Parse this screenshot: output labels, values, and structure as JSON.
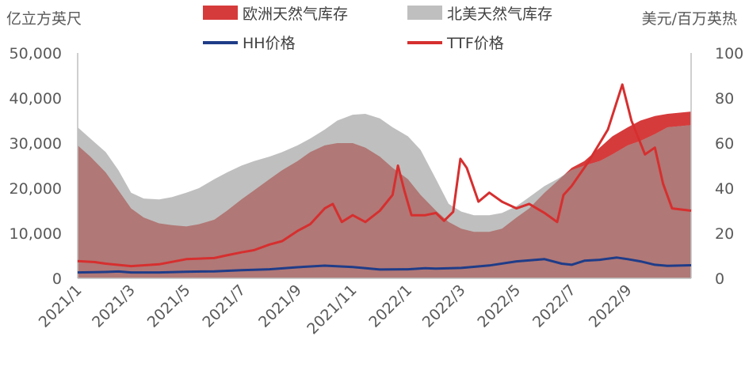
{
  "chart_data": {
    "type": "area",
    "left_unit": "亿立方英尺",
    "right_unit": "美元/百万英热",
    "left_axis": {
      "min": 0,
      "max": 50000,
      "ticks": [
        0,
        10000,
        20000,
        30000,
        40000,
        50000
      ],
      "tick_labels": [
        "0",
        "10,000",
        "20,000",
        "30,000",
        "40,000",
        "50,000"
      ]
    },
    "right_axis": {
      "min": 0,
      "max": 100,
      "ticks": [
        0,
        20,
        40,
        60,
        80,
        100
      ],
      "tick_labels": [
        "0",
        "20",
        "40",
        "60",
        "80",
        "100"
      ]
    },
    "x_range": [
      "2021-01-01",
      "2022-11-10"
    ],
    "x_ticks": [
      "2021-01-01",
      "2021-03-01",
      "2021-05-01",
      "2021-07-01",
      "2021-09-01",
      "2021-11-01",
      "2022-01-01",
      "2022-03-01",
      "2022-05-01",
      "2022-07-01",
      "2022-09-01"
    ],
    "x_tick_labels": [
      "2021/1",
      "2021/3",
      "2021/5",
      "2021/7",
      "2021/9",
      "2021/11",
      "2022/1",
      "2022/3",
      "2022/5",
      "2022/7",
      "2022/9"
    ],
    "colors": {
      "europe_storage": "#d63b3b",
      "na_storage": "#bfbfbf",
      "hh": "#1f3c88",
      "ttf": "#d62f2f",
      "overlap": "#b07876",
      "axis": "#bfbfbf"
    },
    "legend": [
      {
        "key": "europe",
        "label": "欧洲天然气库存"
      },
      {
        "key": "na",
        "label": "北美天然气库存"
      },
      {
        "key": "hh",
        "label": "HH价格"
      },
      {
        "key": "ttf",
        "label": "TTF价格"
      }
    ],
    "series": [
      {
        "name": "欧洲天然气库存",
        "axis": "left",
        "style": "area",
        "points": [
          [
            "2021-01-01",
            29500
          ],
          [
            "2021-01-15",
            27000
          ],
          [
            "2021-02-01",
            23500
          ],
          [
            "2021-02-15",
            19500
          ],
          [
            "2021-03-01",
            15500
          ],
          [
            "2021-03-15",
            13500
          ],
          [
            "2021-04-01",
            12200
          ],
          [
            "2021-04-15",
            11800
          ],
          [
            "2021-05-01",
            11500
          ],
          [
            "2021-05-15",
            12000
          ],
          [
            "2021-06-01",
            13000
          ],
          [
            "2021-06-15",
            15000
          ],
          [
            "2021-07-01",
            17500
          ],
          [
            "2021-07-15",
            19500
          ],
          [
            "2021-08-01",
            22000
          ],
          [
            "2021-08-15",
            24000
          ],
          [
            "2021-09-01",
            26000
          ],
          [
            "2021-09-15",
            28000
          ],
          [
            "2021-10-01",
            29500
          ],
          [
            "2021-10-15",
            30000
          ],
          [
            "2021-11-01",
            30000
          ],
          [
            "2021-11-15",
            29000
          ],
          [
            "2021-12-01",
            27000
          ],
          [
            "2021-12-15",
            24500
          ],
          [
            "2022-01-01",
            22000
          ],
          [
            "2022-01-15",
            18500
          ],
          [
            "2022-02-01",
            15000
          ],
          [
            "2022-02-15",
            12500
          ],
          [
            "2022-03-01",
            11000
          ],
          [
            "2022-03-15",
            10300
          ],
          [
            "2022-04-01",
            10300
          ],
          [
            "2022-04-15",
            11000
          ],
          [
            "2022-05-01",
            13500
          ],
          [
            "2022-05-15",
            15500
          ],
          [
            "2022-06-01",
            19000
          ],
          [
            "2022-06-15",
            21500
          ],
          [
            "2022-07-01",
            24500
          ],
          [
            "2022-07-15",
            26000
          ],
          [
            "2022-08-01",
            29000
          ],
          [
            "2022-08-15",
            31500
          ],
          [
            "2022-09-01",
            33500
          ],
          [
            "2022-09-15",
            35000
          ],
          [
            "2022-10-01",
            36000
          ],
          [
            "2022-10-15",
            36500
          ],
          [
            "2022-11-10",
            37000
          ]
        ]
      },
      {
        "name": "北美天然气库存",
        "axis": "left",
        "style": "area",
        "points": [
          [
            "2021-01-01",
            33500
          ],
          [
            "2021-01-15",
            31000
          ],
          [
            "2021-02-01",
            28000
          ],
          [
            "2021-02-15",
            24000
          ],
          [
            "2021-03-01",
            19000
          ],
          [
            "2021-03-15",
            17700
          ],
          [
            "2021-04-01",
            17500
          ],
          [
            "2021-04-15",
            18000
          ],
          [
            "2021-05-01",
            19000
          ],
          [
            "2021-05-15",
            20000
          ],
          [
            "2021-06-01",
            22000
          ],
          [
            "2021-06-15",
            23500
          ],
          [
            "2021-07-01",
            25000
          ],
          [
            "2021-07-15",
            26000
          ],
          [
            "2021-08-01",
            27000
          ],
          [
            "2021-08-15",
            28000
          ],
          [
            "2021-09-01",
            29500
          ],
          [
            "2021-09-15",
            31000
          ],
          [
            "2021-10-01",
            33000
          ],
          [
            "2021-10-15",
            35000
          ],
          [
            "2021-11-01",
            36300
          ],
          [
            "2021-11-15",
            36500
          ],
          [
            "2021-12-01",
            35500
          ],
          [
            "2021-12-15",
            33500
          ],
          [
            "2022-01-01",
            31500
          ],
          [
            "2022-01-15",
            28500
          ],
          [
            "2022-02-01",
            22000
          ],
          [
            "2022-02-15",
            16500
          ],
          [
            "2022-03-01",
            14800
          ],
          [
            "2022-03-15",
            14000
          ],
          [
            "2022-04-01",
            14000
          ],
          [
            "2022-04-15",
            14500
          ],
          [
            "2022-05-01",
            16000
          ],
          [
            "2022-05-15",
            18000
          ],
          [
            "2022-06-01",
            20500
          ],
          [
            "2022-06-15",
            22000
          ],
          [
            "2022-07-01",
            24000
          ],
          [
            "2022-07-15",
            25000
          ],
          [
            "2022-08-01",
            26000
          ],
          [
            "2022-08-15",
            27500
          ],
          [
            "2022-09-01",
            29500
          ],
          [
            "2022-09-15",
            30500
          ],
          [
            "2022-10-01",
            32000
          ],
          [
            "2022-10-15",
            33500
          ],
          [
            "2022-11-10",
            34000
          ]
        ]
      },
      {
        "name": "HH价格",
        "axis": "right",
        "style": "line",
        "points": [
          [
            "2021-01-01",
            2.6
          ],
          [
            "2021-02-01",
            2.8
          ],
          [
            "2021-02-15",
            3.0
          ],
          [
            "2021-03-01",
            2.6
          ],
          [
            "2021-04-01",
            2.6
          ],
          [
            "2021-05-01",
            2.9
          ],
          [
            "2021-06-01",
            3.1
          ],
          [
            "2021-07-01",
            3.6
          ],
          [
            "2021-08-01",
            4.0
          ],
          [
            "2021-09-01",
            4.9
          ],
          [
            "2021-10-01",
            5.6
          ],
          [
            "2021-11-01",
            5.0
          ],
          [
            "2021-12-01",
            3.9
          ],
          [
            "2022-01-01",
            4.0
          ],
          [
            "2022-01-20",
            4.5
          ],
          [
            "2022-02-01",
            4.3
          ],
          [
            "2022-03-01",
            4.6
          ],
          [
            "2022-04-01",
            5.7
          ],
          [
            "2022-05-01",
            7.5
          ],
          [
            "2022-06-01",
            8.5
          ],
          [
            "2022-06-20",
            6.5
          ],
          [
            "2022-07-01",
            6.0
          ],
          [
            "2022-07-15",
            7.8
          ],
          [
            "2022-08-01",
            8.2
          ],
          [
            "2022-08-20",
            9.2
          ],
          [
            "2022-09-01",
            8.5
          ],
          [
            "2022-09-15",
            7.5
          ],
          [
            "2022-10-01",
            6.0
          ],
          [
            "2022-10-15",
            5.5
          ],
          [
            "2022-11-10",
            5.8
          ]
        ]
      },
      {
        "name": "TTF价格",
        "axis": "right",
        "style": "line",
        "points": [
          [
            "2021-01-01",
            7.6
          ],
          [
            "2021-01-20",
            7.2
          ],
          [
            "2021-02-01",
            6.5
          ],
          [
            "2021-03-01",
            5.4
          ],
          [
            "2021-04-01",
            6.2
          ],
          [
            "2021-05-01",
            8.5
          ],
          [
            "2021-06-01",
            9.0
          ],
          [
            "2021-06-15",
            10.2
          ],
          [
            "2021-07-01",
            11.5
          ],
          [
            "2021-07-15",
            12.5
          ],
          [
            "2021-08-01",
            15.0
          ],
          [
            "2021-08-15",
            16.5
          ],
          [
            "2021-09-01",
            21.0
          ],
          [
            "2021-09-15",
            24.0
          ],
          [
            "2021-10-01",
            31.0
          ],
          [
            "2021-10-10",
            33.0
          ],
          [
            "2021-10-20",
            25.0
          ],
          [
            "2021-11-01",
            28.0
          ],
          [
            "2021-11-15",
            25.0
          ],
          [
            "2021-12-01",
            30.0
          ],
          [
            "2021-12-15",
            37.0
          ],
          [
            "2021-12-21",
            50.0
          ],
          [
            "2021-12-28",
            39.0
          ],
          [
            "2022-01-05",
            28.0
          ],
          [
            "2022-01-20",
            28.0
          ],
          [
            "2022-02-01",
            29.0
          ],
          [
            "2022-02-10",
            25.5
          ],
          [
            "2022-02-20",
            29.5
          ],
          [
            "2022-02-28",
            53.0
          ],
          [
            "2022-03-07",
            49.0
          ],
          [
            "2022-03-20",
            34.0
          ],
          [
            "2022-04-01",
            38.0
          ],
          [
            "2022-04-15",
            34.0
          ],
          [
            "2022-05-01",
            31.0
          ],
          [
            "2022-05-15",
            33.0
          ],
          [
            "2022-06-01",
            29.0
          ],
          [
            "2022-06-15",
            25.0
          ],
          [
            "2022-06-22",
            37.0
          ],
          [
            "2022-07-01",
            41.0
          ],
          [
            "2022-07-20",
            52.0
          ],
          [
            "2022-08-01",
            60.0
          ],
          [
            "2022-08-10",
            66.0
          ],
          [
            "2022-08-26",
            86.0
          ],
          [
            "2022-09-05",
            70.0
          ],
          [
            "2022-09-20",
            55.0
          ],
          [
            "2022-10-01",
            58.0
          ],
          [
            "2022-10-10",
            42.0
          ],
          [
            "2022-10-20",
            31.0
          ],
          [
            "2022-11-10",
            30.0
          ]
        ]
      }
    ]
  }
}
